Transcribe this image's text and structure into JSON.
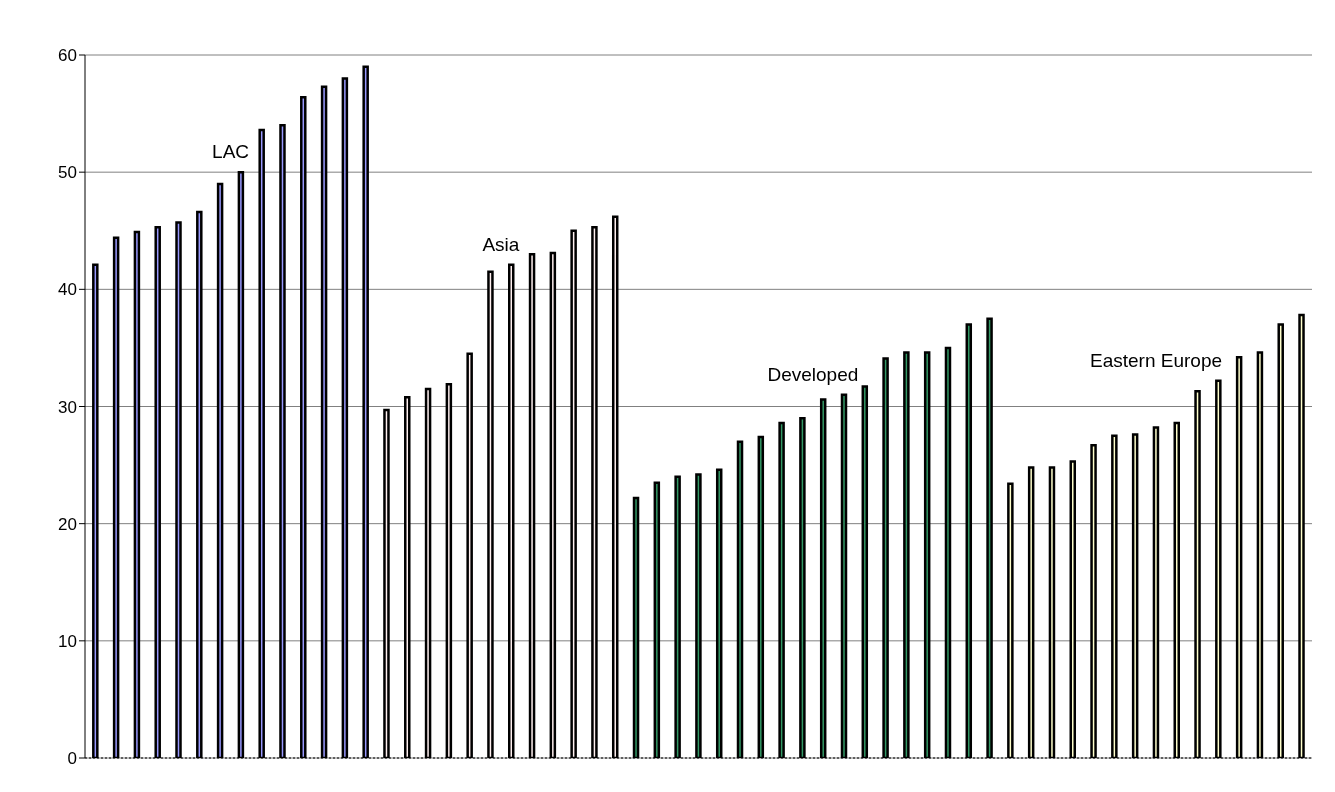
{
  "chart_data": {
    "type": "bar",
    "categories": [
      null,
      null,
      null,
      null,
      null,
      null,
      null,
      null,
      null,
      null,
      null,
      null,
      null,
      null,
      null,
      null,
      null,
      null,
      null,
      null,
      null,
      null,
      null,
      null,
      null,
      null,
      null,
      null,
      null,
      null,
      null,
      null,
      null,
      null,
      null,
      null,
      null,
      null,
      null,
      null,
      null,
      null,
      null,
      null,
      null,
      null,
      null,
      null,
      null,
      null,
      null,
      null,
      null,
      null,
      null,
      null,
      null,
      null,
      null
    ],
    "series": [
      {
        "name": "LAC",
        "color": "#9999ff",
        "values": [
          42.1,
          44.4,
          44.9,
          45.3,
          45.7,
          46.6,
          49,
          50,
          53.6,
          54,
          56.4,
          57.3,
          58,
          59,
          null,
          null,
          null,
          null,
          null,
          null,
          null,
          null,
          null,
          null,
          null,
          null,
          null,
          null,
          null,
          null,
          null,
          null,
          null,
          null,
          null,
          null,
          null,
          null,
          null,
          null,
          null,
          null,
          null,
          null,
          null,
          null,
          null,
          null,
          null,
          null,
          null,
          null,
          null,
          null,
          null,
          null,
          null,
          null,
          null
        ]
      },
      {
        "name": "Asia",
        "color": "#fff0f0",
        "values": [
          null,
          null,
          null,
          null,
          null,
          null,
          null,
          null,
          null,
          null,
          null,
          null,
          null,
          null,
          29.7,
          30.8,
          31.5,
          31.9,
          34.5,
          41.5,
          42.1,
          43,
          43.1,
          45,
          45.3,
          46.2,
          null,
          null,
          null,
          null,
          null,
          null,
          null,
          null,
          null,
          null,
          null,
          null,
          null,
          null,
          null,
          null,
          null,
          null,
          null,
          null,
          null,
          null,
          null,
          null,
          null,
          null,
          null,
          null,
          null,
          null,
          null,
          null,
          null
        ]
      },
      {
        "name": "Developed",
        "color": "#339966",
        "values": [
          null,
          null,
          null,
          null,
          null,
          null,
          null,
          null,
          null,
          null,
          null,
          null,
          null,
          null,
          null,
          null,
          null,
          null,
          null,
          null,
          null,
          null,
          null,
          null,
          null,
          null,
          22.2,
          23.5,
          24,
          24.2,
          24.6,
          27,
          27.4,
          28.6,
          29,
          30.6,
          31,
          31.7,
          34.1,
          34.6,
          34.6,
          35,
          37,
          37.5,
          null,
          null,
          null,
          null,
          null,
          null,
          null,
          null,
          null,
          null,
          null,
          null,
          null,
          null,
          null
        ]
      },
      {
        "name": "Eastern Europe",
        "color": "#ffffcc",
        "values": [
          null,
          null,
          null,
          null,
          null,
          null,
          null,
          null,
          null,
          null,
          null,
          null,
          null,
          null,
          null,
          null,
          null,
          null,
          null,
          null,
          null,
          null,
          null,
          null,
          null,
          null,
          null,
          null,
          null,
          null,
          null,
          null,
          null,
          null,
          null,
          null,
          null,
          null,
          null,
          null,
          null,
          null,
          null,
          null,
          23.4,
          24.8,
          24.8,
          25.3,
          26.7,
          27.5,
          27.6,
          28.2,
          28.6,
          31.3,
          32.2,
          34.2,
          34.6,
          37,
          37.8
        ]
      }
    ],
    "ylim": [
      0,
      60
    ],
    "yticks": [
      0,
      10,
      20,
      30,
      40,
      50,
      60
    ],
    "grid": "y",
    "legend": false
  }
}
